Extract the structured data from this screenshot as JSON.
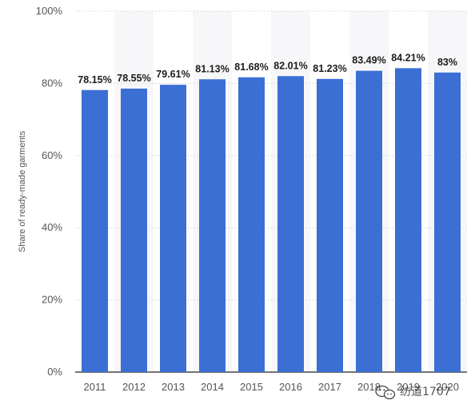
{
  "chart_data": {
    "type": "bar",
    "title": "",
    "xlabel": "",
    "ylabel": "Share of ready-made garments",
    "ylim": [
      0,
      100
    ],
    "yticks": [
      "0%",
      "20%",
      "40%",
      "60%",
      "80%",
      "100%"
    ],
    "categories": [
      "2011",
      "2012",
      "2013",
      "2014",
      "2015",
      "2016",
      "2017",
      "2018",
      "2019",
      "2020"
    ],
    "values": [
      78.15,
      78.55,
      79.61,
      81.13,
      81.68,
      82.01,
      81.23,
      83.49,
      84.21,
      83
    ],
    "data_labels": [
      "78.15%",
      "78.55%",
      "79.61%",
      "81.13%",
      "81.68%",
      "82.01%",
      "81.23%",
      "83.49%",
      "84.21%",
      "83%"
    ],
    "grid": true,
    "bar_color": "#3c6fd4",
    "stripe_color": "#f7f7f9"
  },
  "watermark": {
    "text": "纺道1707",
    "icon": "wechat-icon"
  }
}
